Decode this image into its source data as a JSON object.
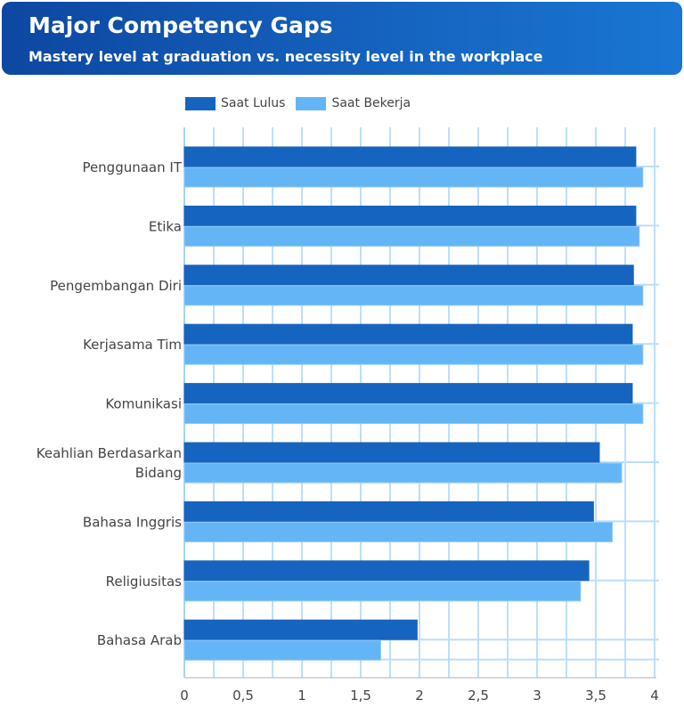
{
  "header": {
    "title": "Major Competency Gaps",
    "subtitle": "Mastery level at graduation vs. necessity level in the workplace"
  },
  "chart_data": {
    "type": "bar",
    "orientation": "horizontal",
    "categories": [
      "Penggunaan IT",
      "Etika",
      "Pengembangan Diri",
      "Kerjasama Tim",
      "Komunikasi",
      "Keahlian Berdasarkan Bidang",
      "Bahasa Inggris",
      "Religiusitas",
      "Bahasa Arab"
    ],
    "category_lines": [
      [
        "Penggunaan IT"
      ],
      [
        "Etika"
      ],
      [
        "Pengembangan Diri"
      ],
      [
        "Kerjasama Tim"
      ],
      [
        "Komunikasi"
      ],
      [
        "Keahlian Berdasarkan",
        "Bidang"
      ],
      [
        "Bahasa Inggris"
      ],
      [
        "Religiusitas"
      ],
      [
        "Bahasa Arab"
      ]
    ],
    "series": [
      {
        "name": "Saat Lulus",
        "color": "#1565c0",
        "values": [
          3.84,
          3.84,
          3.82,
          3.81,
          3.81,
          3.53,
          3.48,
          3.44,
          1.98
        ]
      },
      {
        "name": "Saat Bekerja",
        "color": "#64b5f6",
        "values": [
          3.9,
          3.87,
          3.9,
          3.9,
          3.9,
          3.72,
          3.64,
          3.37,
          1.67
        ]
      }
    ],
    "xlim": [
      0,
      4
    ],
    "xticks": [
      "0",
      "0,5",
      "1",
      "1,5",
      "2",
      "2,5",
      "3",
      "3,5",
      "4"
    ],
    "grid": true,
    "legend_position": "top"
  }
}
